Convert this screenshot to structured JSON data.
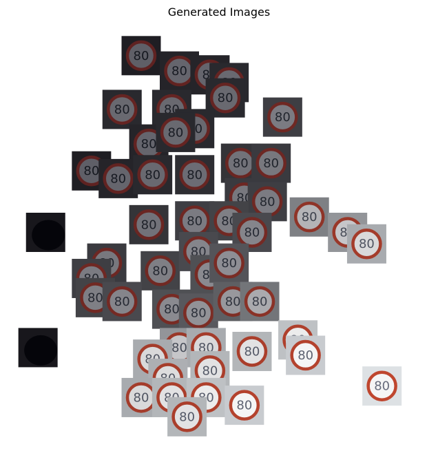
{
  "figure": {
    "title": "Generated Images"
  },
  "chart_data": {
    "type": "scatter",
    "title": "Generated Images",
    "xlabel": "",
    "ylabel": "",
    "axes_visible": false,
    "grid": false,
    "marker": "image-thumbnail",
    "marker_content": "80",
    "colors": {
      "sign_red": "#c4482f",
      "dark_bg": "#141318",
      "light_bg": "#e8ecef"
    },
    "points": [
      {
        "x": 0.3,
        "y": 0.96,
        "brightness": 0.05,
        "sign": true
      },
      {
        "x": 0.4,
        "y": 0.92,
        "brightness": 0.08,
        "sign": true
      },
      {
        "x": 0.48,
        "y": 0.91,
        "brightness": 0.08,
        "sign": true
      },
      {
        "x": 0.53,
        "y": 0.89,
        "brightness": 0.1,
        "sign": true
      },
      {
        "x": 0.52,
        "y": 0.85,
        "brightness": 0.1,
        "sign": true
      },
      {
        "x": 0.67,
        "y": 0.8,
        "brightness": 0.2,
        "sign": true
      },
      {
        "x": 0.25,
        "y": 0.82,
        "brightness": 0.1,
        "sign": true
      },
      {
        "x": 0.38,
        "y": 0.82,
        "brightness": 0.1,
        "sign": true
      },
      {
        "x": 0.44,
        "y": 0.77,
        "brightness": 0.1,
        "sign": true
      },
      {
        "x": 0.32,
        "y": 0.73,
        "brightness": 0.08,
        "sign": true
      },
      {
        "x": 0.39,
        "y": 0.76,
        "brightness": 0.1,
        "sign": true
      },
      {
        "x": 0.56,
        "y": 0.68,
        "brightness": 0.15,
        "sign": true
      },
      {
        "x": 0.64,
        "y": 0.68,
        "brightness": 0.18,
        "sign": true
      },
      {
        "x": 0.17,
        "y": 0.66,
        "brightness": 0.05,
        "sign": true
      },
      {
        "x": 0.24,
        "y": 0.64,
        "brightness": 0.08,
        "sign": true
      },
      {
        "x": 0.33,
        "y": 0.65,
        "brightness": 0.1,
        "sign": true
      },
      {
        "x": 0.44,
        "y": 0.65,
        "brightness": 0.12,
        "sign": true
      },
      {
        "x": 0.57,
        "y": 0.59,
        "brightness": 0.18,
        "sign": true
      },
      {
        "x": 0.63,
        "y": 0.58,
        "brightness": 0.2,
        "sign": true
      },
      {
        "x": 0.05,
        "y": 0.5,
        "brightness": 0.02,
        "sign": false
      },
      {
        "x": 0.32,
        "y": 0.52,
        "brightness": 0.15,
        "sign": true
      },
      {
        "x": 0.44,
        "y": 0.53,
        "brightness": 0.2,
        "sign": true
      },
      {
        "x": 0.53,
        "y": 0.53,
        "brightness": 0.22,
        "sign": true
      },
      {
        "x": 0.59,
        "y": 0.5,
        "brightness": 0.25,
        "sign": true
      },
      {
        "x": 0.74,
        "y": 0.54,
        "brightness": 0.5,
        "sign": true
      },
      {
        "x": 0.84,
        "y": 0.5,
        "brightness": 0.6,
        "sign": true
      },
      {
        "x": 0.89,
        "y": 0.47,
        "brightness": 0.7,
        "sign": true
      },
      {
        "x": 0.21,
        "y": 0.42,
        "brightness": 0.18,
        "sign": true
      },
      {
        "x": 0.35,
        "y": 0.4,
        "brightness": 0.22,
        "sign": true
      },
      {
        "x": 0.45,
        "y": 0.45,
        "brightness": 0.25,
        "sign": true
      },
      {
        "x": 0.48,
        "y": 0.39,
        "brightness": 0.28,
        "sign": true
      },
      {
        "x": 0.53,
        "y": 0.42,
        "brightness": 0.3,
        "sign": true
      },
      {
        "x": 0.17,
        "y": 0.38,
        "brightness": 0.2,
        "sign": true
      },
      {
        "x": 0.18,
        "y": 0.33,
        "brightness": 0.22,
        "sign": true
      },
      {
        "x": 0.25,
        "y": 0.32,
        "brightness": 0.25,
        "sign": true
      },
      {
        "x": 0.38,
        "y": 0.3,
        "brightness": 0.28,
        "sign": true
      },
      {
        "x": 0.45,
        "y": 0.29,
        "brightness": 0.32,
        "sign": true
      },
      {
        "x": 0.54,
        "y": 0.32,
        "brightness": 0.35,
        "sign": true
      },
      {
        "x": 0.61,
        "y": 0.32,
        "brightness": 0.45,
        "sign": true
      },
      {
        "x": 0.03,
        "y": 0.2,
        "brightness": 0.02,
        "sign": false
      },
      {
        "x": 0.4,
        "y": 0.2,
        "brightness": 0.6,
        "sign": true
      },
      {
        "x": 0.47,
        "y": 0.2,
        "brightness": 0.7,
        "sign": true
      },
      {
        "x": 0.59,
        "y": 0.19,
        "brightness": 0.75,
        "sign": true
      },
      {
        "x": 0.71,
        "y": 0.22,
        "brightness": 0.8,
        "sign": true
      },
      {
        "x": 0.73,
        "y": 0.18,
        "brightness": 0.85,
        "sign": true
      },
      {
        "x": 0.33,
        "y": 0.17,
        "brightness": 0.7,
        "sign": true
      },
      {
        "x": 0.37,
        "y": 0.12,
        "brightness": 0.72,
        "sign": true
      },
      {
        "x": 0.48,
        "y": 0.14,
        "brightness": 0.75,
        "sign": true
      },
      {
        "x": 0.3,
        "y": 0.07,
        "brightness": 0.7,
        "sign": true
      },
      {
        "x": 0.38,
        "y": 0.07,
        "brightness": 0.75,
        "sign": true
      },
      {
        "x": 0.47,
        "y": 0.07,
        "brightness": 0.8,
        "sign": true
      },
      {
        "x": 0.57,
        "y": 0.05,
        "brightness": 0.85,
        "sign": true
      },
      {
        "x": 0.42,
        "y": 0.02,
        "brightness": 0.75,
        "sign": true
      },
      {
        "x": 0.93,
        "y": 0.1,
        "brightness": 0.95,
        "sign": true
      }
    ]
  }
}
